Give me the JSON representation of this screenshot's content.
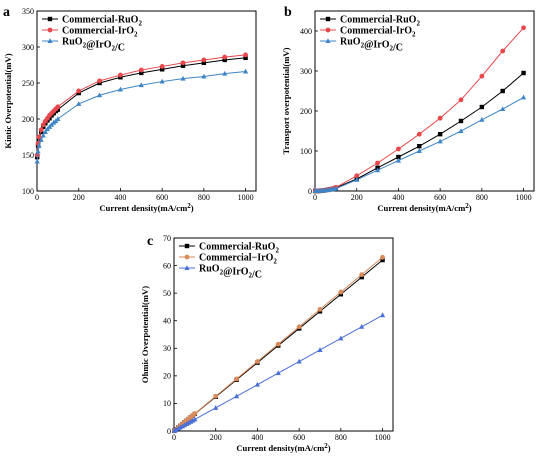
{
  "chart_data": [
    {
      "panel": "a",
      "type": "line",
      "xlabel": "Current density(mA/cm²)",
      "ylabel": "Kintic Overpotential(mV)",
      "xlim": [
        0,
        1050
      ],
      "ylim": [
        100,
        350
      ],
      "xticks": [
        0,
        200,
        400,
        600,
        800,
        1000
      ],
      "yticks": [
        100,
        150,
        200,
        250,
        300,
        350
      ],
      "legend_position": "top-left",
      "series": [
        {
          "name": "Commercial-RuO₂",
          "color": "#000000",
          "marker": "square",
          "x": [
            1,
            5,
            10,
            20,
            30,
            40,
            50,
            60,
            70,
            80,
            90,
            100,
            200,
            300,
            400,
            500,
            600,
            700,
            800,
            900,
            1000
          ],
          "y": [
            147,
            163,
            172,
            182,
            189,
            194,
            198,
            201,
            205,
            208,
            211,
            213,
            236,
            250,
            258,
            264,
            269,
            274,
            278,
            282,
            285
          ]
        },
        {
          "name": "Commercial-IrO₂",
          "color": "#e8474b",
          "marker": "circle",
          "x": [
            1,
            5,
            10,
            20,
            30,
            40,
            50,
            60,
            70,
            80,
            90,
            100,
            200,
            300,
            400,
            500,
            600,
            700,
            800,
            900,
            1000
          ],
          "y": [
            150,
            166,
            175,
            185,
            192,
            197,
            201,
            205,
            208,
            211,
            214,
            217,
            239,
            253,
            261,
            268,
            273,
            278,
            282,
            286,
            289
          ]
        },
        {
          "name": "RuO₂@IrO₂/C",
          "color": "#3d85c6",
          "marker": "triangle",
          "x": [
            1,
            5,
            10,
            20,
            30,
            40,
            50,
            60,
            70,
            80,
            90,
            100,
            200,
            300,
            400,
            500,
            600,
            700,
            800,
            900,
            1000
          ],
          "y": [
            141,
            155,
            163,
            171,
            177,
            182,
            186,
            189,
            192,
            195,
            197,
            200,
            221,
            233,
            241,
            247,
            252,
            256,
            259,
            263,
            266
          ]
        }
      ]
    },
    {
      "panel": "b",
      "type": "line",
      "xlabel": "Current density(mA/cm²)",
      "ylabel": "Transport overpotential(mV)",
      "xlim": [
        0,
        1050
      ],
      "ylim": [
        0,
        450
      ],
      "xticks": [
        0,
        200,
        400,
        600,
        800,
        1000
      ],
      "yticks": [
        0,
        100,
        200,
        300,
        400
      ],
      "legend_position": "top-left",
      "series": [
        {
          "name": "Commercial-RuO₂",
          "color": "#000000",
          "marker": "square",
          "x": [
            1,
            5,
            10,
            20,
            30,
            40,
            50,
            60,
            70,
            80,
            90,
            100,
            200,
            300,
            400,
            500,
            600,
            700,
            800,
            900,
            1000
          ],
          "y": [
            0,
            0,
            0,
            0,
            1,
            1,
            2,
            3,
            4,
            5,
            6,
            8,
            30,
            58,
            85,
            112,
            142,
            175,
            210,
            250,
            295
          ]
        },
        {
          "name": "Commercial-IrO₂",
          "color": "#e8474b",
          "marker": "circle",
          "x": [
            1,
            5,
            10,
            20,
            30,
            40,
            50,
            60,
            70,
            80,
            90,
            100,
            200,
            300,
            400,
            500,
            600,
            700,
            800,
            900,
            1000
          ],
          "y": [
            0,
            0,
            0,
            0,
            1,
            1,
            2,
            3,
            4,
            5,
            7,
            9,
            38,
            70,
            105,
            142,
            182,
            228,
            287,
            350,
            408
          ]
        },
        {
          "name": "RuO₂@IrO₂/C",
          "color": "#3d85c6",
          "marker": "triangle",
          "x": [
            1,
            5,
            10,
            20,
            30,
            40,
            50,
            60,
            70,
            80,
            90,
            100,
            200,
            300,
            400,
            500,
            600,
            700,
            800,
            900,
            1000
          ],
          "y": [
            0,
            0,
            0,
            0,
            1,
            1,
            2,
            2,
            3,
            4,
            5,
            6,
            28,
            52,
            76,
            100,
            124,
            150,
            178,
            205,
            234
          ]
        }
      ]
    },
    {
      "panel": "c",
      "type": "line",
      "xlabel": "Current density(mA/cm²)",
      "ylabel": "Ohmic Overpotential(mV)",
      "xlim": [
        0,
        1050
      ],
      "ylim": [
        0,
        70
      ],
      "xticks": [
        0,
        200,
        400,
        600,
        800,
        1000
      ],
      "yticks": [
        0,
        10,
        20,
        30,
        40,
        50,
        60,
        70
      ],
      "legend_position": "top-left",
      "series": [
        {
          "name": "Commercial-RuO₂",
          "color": "#000000",
          "marker": "square",
          "x": [
            1,
            5,
            10,
            20,
            30,
            40,
            50,
            60,
            70,
            80,
            90,
            100,
            200,
            300,
            400,
            500,
            600,
            700,
            800,
            900,
            1000
          ],
          "y": [
            0.06,
            0.31,
            0.62,
            1.24,
            1.86,
            2.48,
            3.1,
            3.72,
            4.34,
            4.96,
            5.58,
            6.2,
            12.4,
            18.6,
            24.8,
            31,
            37.2,
            43.4,
            49.6,
            55.8,
            62
          ]
        },
        {
          "name": "Commercial−IrO₂",
          "color": "#d98a5a",
          "marker": "circle",
          "x": [
            1,
            5,
            10,
            20,
            30,
            40,
            50,
            60,
            70,
            80,
            90,
            100,
            200,
            300,
            400,
            500,
            600,
            700,
            800,
            900,
            1000
          ],
          "y": [
            0.06,
            0.32,
            0.63,
            1.26,
            1.89,
            2.52,
            3.15,
            3.78,
            4.41,
            5.04,
            5.67,
            6.3,
            12.6,
            18.9,
            25.2,
            31.5,
            37.8,
            44.1,
            50.4,
            56.7,
            63
          ]
        },
        {
          "name": "RuO₂@IrO₂/C",
          "color": "#4a6fd6",
          "marker": "triangle",
          "x": [
            1,
            5,
            10,
            20,
            30,
            40,
            50,
            60,
            70,
            80,
            90,
            100,
            200,
            300,
            400,
            500,
            600,
            700,
            800,
            900,
            1000
          ],
          "y": [
            0.04,
            0.21,
            0.42,
            0.84,
            1.26,
            1.68,
            2.1,
            2.52,
            2.94,
            3.36,
            3.78,
            4.2,
            8.4,
            12.6,
            16.8,
            21,
            25.2,
            29.4,
            33.6,
            37.8,
            42
          ]
        }
      ]
    }
  ]
}
